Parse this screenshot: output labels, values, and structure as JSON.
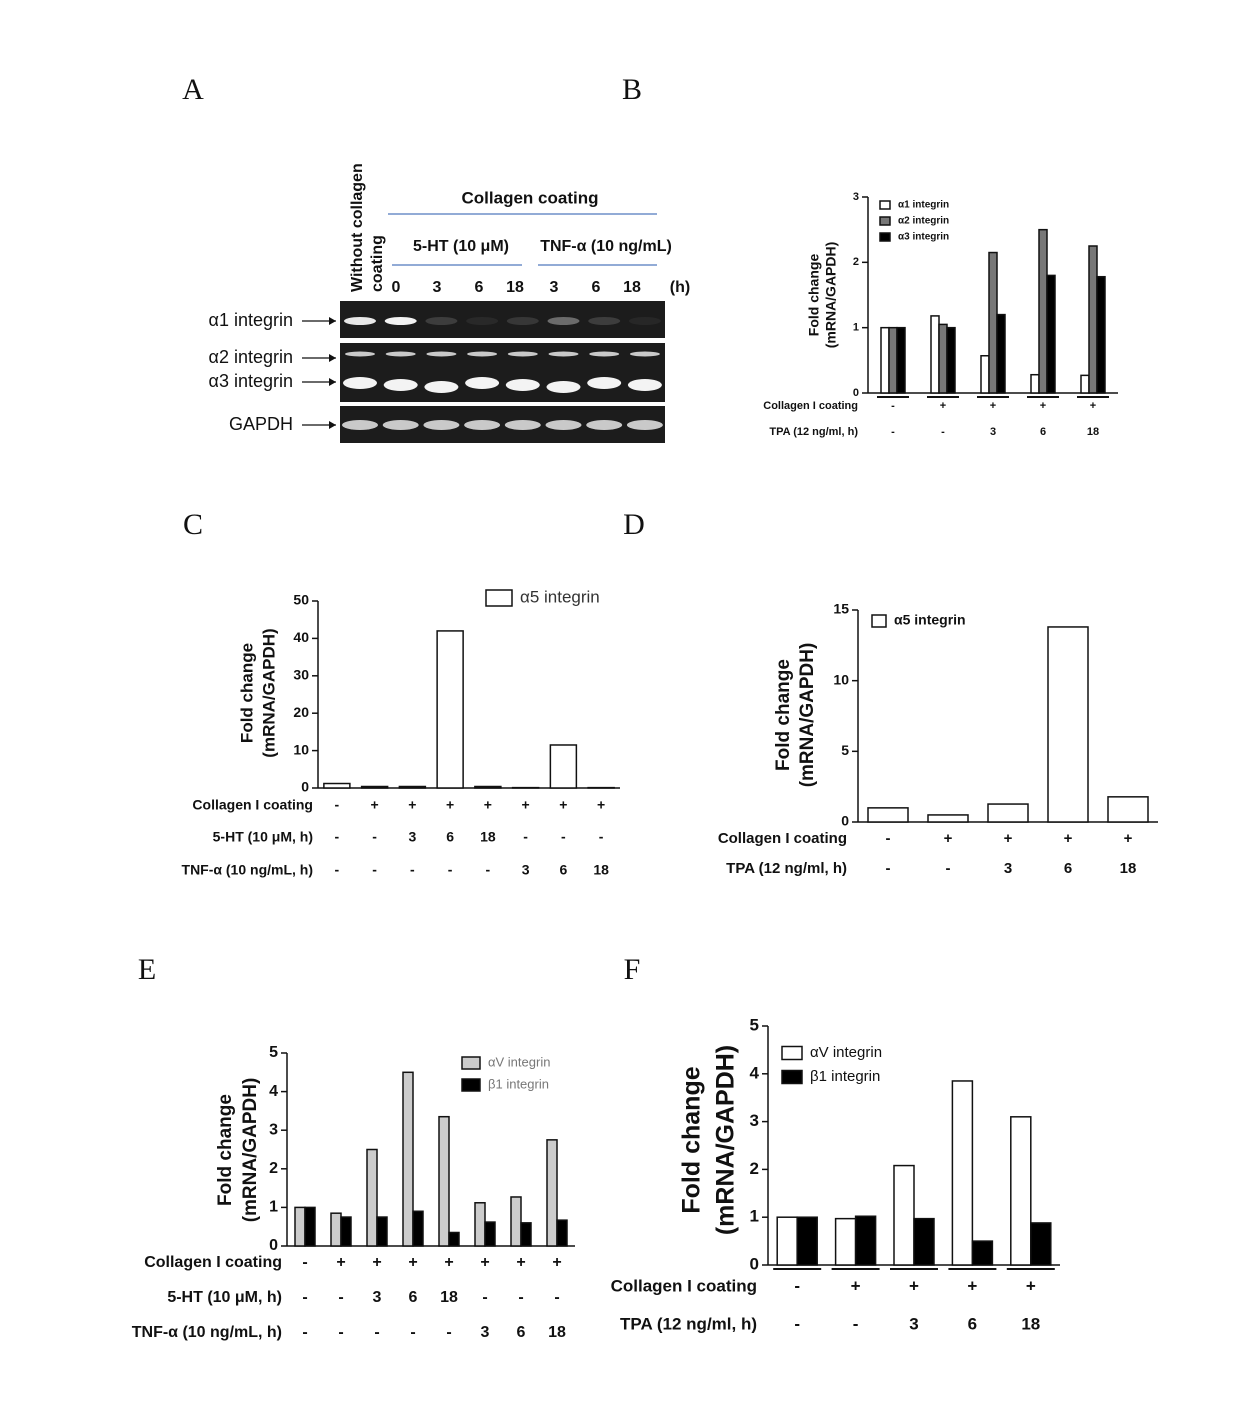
{
  "panel_labels": [
    "A",
    "B",
    "C",
    "D",
    "E",
    "F"
  ],
  "panel_a": {
    "column_header": [
      "Without collagen",
      "coating"
    ],
    "group_header": "Collagen coating",
    "treatments": [
      "5-HT (10 μM)",
      "TNF-α (10 ng/mL)"
    ],
    "lane_labels": [
      "0",
      "3",
      "6",
      "18",
      "3",
      "6",
      "18"
    ],
    "time_unit": "(h)",
    "row_labels": [
      "α1 integrin",
      "α2 integrin",
      "α3 integrin",
      "GAPDH"
    ]
  },
  "chart_data": [
    {
      "type": "bar",
      "y_label": [
        "Fold change",
        "(mRNA/GAPDH)"
      ],
      "ylim": [
        0,
        3
      ],
      "yticks": [
        0,
        1,
        2,
        3
      ],
      "series": [
        {
          "name": "α1 integrin",
          "color": "#ffffff",
          "values": [
            1.0,
            1.18,
            0.57,
            0.28,
            0.27
          ]
        },
        {
          "name": "α2 integrin",
          "color": "#777777",
          "values": [
            1.0,
            1.05,
            2.15,
            2.5,
            2.25
          ]
        },
        {
          "name": "α3 integrin",
          "color": "#000000",
          "values": [
            1.0,
            1.0,
            1.2,
            1.8,
            1.78
          ]
        }
      ],
      "condition_rows": [
        {
          "label": "Collagen I coating",
          "values": [
            "-",
            "+",
            "+",
            "+",
            "+"
          ]
        },
        {
          "label": "TPA (12 ng/ml, h)",
          "values": [
            "-",
            "-",
            "3",
            "6",
            "18"
          ]
        }
      ]
    },
    {
      "type": "bar",
      "y_label": [
        "Fold change",
        "(mRNA/GAPDH)"
      ],
      "ylim": [
        0,
        50
      ],
      "yticks": [
        0,
        10,
        20,
        30,
        40,
        50
      ],
      "series": [
        {
          "name": "α5 integrin",
          "color": "#ffffff",
          "values": [
            1.2,
            0.4,
            0.4,
            42,
            0.4,
            0.1,
            11.5,
            0.1
          ]
        }
      ],
      "condition_rows": [
        {
          "label": "Collagen I coating",
          "values": [
            "-",
            "+",
            "+",
            "+",
            "+",
            "+",
            "+",
            "+"
          ]
        },
        {
          "label": "5-HT (10 μM, h)",
          "values": [
            "-",
            "-",
            "3",
            "6",
            "18",
            "-",
            "-",
            "-"
          ]
        },
        {
          "label": "TNF-α (10 ng/mL, h)",
          "values": [
            "-",
            "-",
            "-",
            "-",
            "-",
            "3",
            "6",
            "18"
          ]
        }
      ]
    },
    {
      "type": "bar",
      "y_label": [
        "Fold change",
        "(mRNA/GAPDH)"
      ],
      "ylim": [
        0,
        15
      ],
      "yticks": [
        0,
        5,
        10,
        15
      ],
      "series": [
        {
          "name": "α5 integrin",
          "color": "#ffffff",
          "values": [
            1.0,
            0.5,
            1.27,
            13.8,
            1.78
          ]
        }
      ],
      "condition_rows": [
        {
          "label": "Collagen I coating",
          "values": [
            "-",
            "+",
            "+",
            "+",
            "+"
          ]
        },
        {
          "label": "TPA (12 ng/ml, h)",
          "values": [
            "-",
            "-",
            "3",
            "6",
            "18"
          ]
        }
      ]
    },
    {
      "type": "bar",
      "y_label": [
        "Fold change",
        "(mRNA/GAPDH)"
      ],
      "ylim": [
        0,
        5
      ],
      "yticks": [
        0,
        1,
        2,
        3,
        4,
        5
      ],
      "series": [
        {
          "name": "αV integrin",
          "color": "#cccccc",
          "values": [
            1.0,
            0.85,
            2.5,
            4.5,
            3.35,
            1.12,
            1.27,
            2.75
          ]
        },
        {
          "name": "β1 integrin",
          "color": "#000000",
          "values": [
            1.0,
            0.75,
            0.75,
            0.9,
            0.35,
            0.62,
            0.6,
            0.67
          ]
        }
      ],
      "condition_rows": [
        {
          "label": "Collagen I coating",
          "values": [
            "-",
            "+",
            "+",
            "+",
            "+",
            "+",
            "+",
            "+"
          ]
        },
        {
          "label": "5-HT (10 μM, h)",
          "values": [
            "-",
            "-",
            "3",
            "6",
            "18",
            "-",
            "-",
            "-"
          ]
        },
        {
          "label": "TNF-α (10 ng/mL, h)",
          "values": [
            "-",
            "-",
            "-",
            "-",
            "-",
            "3",
            "6",
            "18"
          ]
        }
      ]
    },
    {
      "type": "bar",
      "y_label": [
        "Fold change",
        "(mRNA/GAPDH)"
      ],
      "ylim": [
        0,
        5
      ],
      "yticks": [
        0,
        1,
        2,
        3,
        4,
        5
      ],
      "series": [
        {
          "name": "αV integrin",
          "color": "#ffffff",
          "values": [
            1.0,
            0.97,
            2.08,
            3.85,
            3.1
          ]
        },
        {
          "name": "β1 integrin",
          "color": "#000000",
          "values": [
            1.0,
            1.02,
            0.97,
            0.5,
            0.88
          ]
        }
      ],
      "condition_rows": [
        {
          "label": "Collagen I coating",
          "values": [
            "-",
            "+",
            "+",
            "+",
            "+"
          ]
        },
        {
          "label": "TPA (12 ng/ml, h)",
          "values": [
            "-",
            "-",
            "3",
            "6",
            "18"
          ]
        }
      ]
    }
  ]
}
